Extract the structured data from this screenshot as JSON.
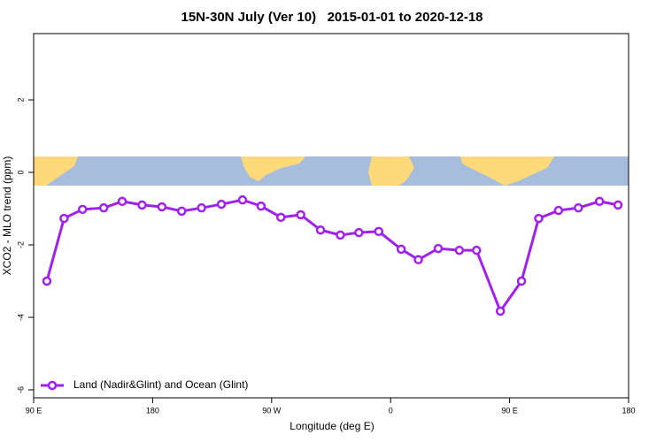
{
  "chart_data": {
    "type": "line",
    "title": "15N-30N July (Ver 10)   2015-01-01 to 2020-12-18",
    "x_label": "Longitude (deg E)",
    "y_label": "XCO2 - MLO trend (ppm)",
    "x": [
      100,
      113,
      127,
      143,
      157,
      172,
      187,
      202,
      217,
      232,
      248,
      262,
      277,
      292,
      307,
      322,
      336,
      351,
      368,
      381,
      396,
      412,
      425,
      443,
      459,
      472,
      487,
      502,
      518,
      532
    ],
    "series": [
      {
        "name": "Land (Nadir&Glint) and Ocean (Glint)",
        "color": "#a020f0",
        "values": [
          -3.0,
          -1.27,
          -1.02,
          -0.98,
          -0.8,
          -0.9,
          -0.95,
          -1.07,
          -0.98,
          -0.88,
          -0.76,
          -0.93,
          -1.24,
          -1.17,
          -1.59,
          -1.73,
          -1.66,
          -1.63,
          -2.12,
          -2.41,
          -2.1,
          -2.15,
          -2.15,
          -3.83,
          -3.0,
          -1.27,
          -1.05,
          -0.98,
          -0.8,
          -0.9
        ]
      }
    ],
    "xlim": [
      90,
      540
    ],
    "ylim": [
      -6.22,
      3.83
    ],
    "xticks": [
      {
        "value": 90,
        "label": "90 E"
      },
      180,
      {
        "value": 270,
        "label": "90 W"
      },
      {
        "value": 360,
        "label": "0"
      },
      {
        "value": 450,
        "label": "90 E"
      },
      {
        "value": 540,
        "label": "180"
      }
    ],
    "yticks": [
      -6,
      -4,
      -2,
      0,
      2
    ],
    "legend": "bottom-left"
  }
}
